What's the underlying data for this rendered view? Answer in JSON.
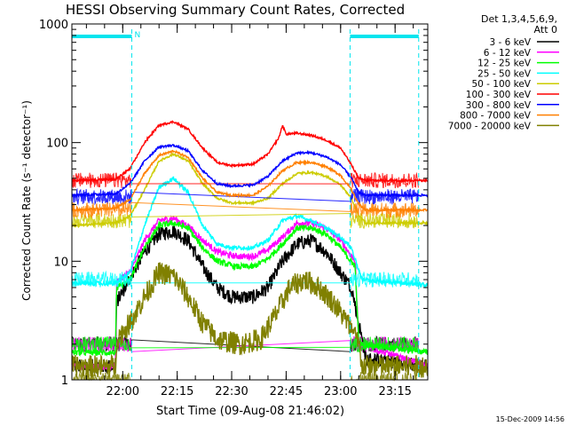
{
  "chart_data": {
    "type": "line",
    "title": "HESSI Observing Summary Count Rates, Corrected",
    "xlabel": "Start Time (09-Aug-08 21:46:02)",
    "ylabel": "Corrected Count Rate (s⁻¹ detector⁻¹)",
    "yscale": "log",
    "ylim": [
      1,
      1000
    ],
    "xlim_minutes": [
      0,
      98
    ],
    "y_ticks": [
      {
        "value": 1,
        "label": "1"
      },
      {
        "value": 10,
        "label": "10"
      },
      {
        "value": 100,
        "label": "100"
      },
      {
        "value": 1000,
        "label": "1000"
      }
    ],
    "x_ticks": [
      {
        "minute": 14,
        "label": "22:00"
      },
      {
        "minute": 29,
        "label": "22:15"
      },
      {
        "minute": 44,
        "label": "22:30"
      },
      {
        "minute": 59,
        "label": "22:45"
      },
      {
        "minute": 74,
        "label": "23:00"
      },
      {
        "minute": 89,
        "label": "23:15"
      }
    ],
    "legend_header": [
      "Det 1,3,4,5,6,9,",
      "Att 0"
    ],
    "timestamp": "15-Dec-2009 14:56",
    "night_marker": "N",
    "night_intervals": [
      [
        0,
        16.5
      ],
      [
        76.6,
        95.5
      ]
    ],
    "saa_lines_minutes": [
      16.5,
      76.6,
      95.5
    ],
    "series": [
      {
        "name": "3 - 6 keV",
        "color": "#000000",
        "gap": 2.0,
        "noise": 0.14,
        "points": [
          [
            0,
            1.3
          ],
          [
            12,
            1.3
          ],
          [
            12.3,
            4.5
          ],
          [
            20,
            12
          ],
          [
            24,
            17
          ],
          [
            28,
            18
          ],
          [
            32,
            15
          ],
          [
            36,
            9
          ],
          [
            40,
            6
          ],
          [
            44,
            5
          ],
          [
            50,
            5
          ],
          [
            54,
            6
          ],
          [
            58,
            10
          ],
          [
            62,
            14
          ],
          [
            66,
            15
          ],
          [
            70,
            12
          ],
          [
            74,
            8
          ],
          [
            77,
            6
          ],
          [
            79,
            3
          ],
          [
            81,
            1.5
          ],
          [
            98,
            1.3
          ]
        ]
      },
      {
        "name": "6 - 12 keV",
        "color": "#ff00ff",
        "gap": 2.0,
        "noise": 0.06,
        "points": [
          [
            0,
            1.3
          ],
          [
            12,
            1.3
          ],
          [
            12.3,
            6.8
          ],
          [
            16,
            8
          ],
          [
            20,
            15
          ],
          [
            24,
            22
          ],
          [
            28,
            23
          ],
          [
            32,
            20
          ],
          [
            36,
            15
          ],
          [
            40,
            12
          ],
          [
            45,
            11
          ],
          [
            50,
            11
          ],
          [
            54,
            12.5
          ],
          [
            58,
            16
          ],
          [
            62,
            21
          ],
          [
            66,
            21
          ],
          [
            70,
            19
          ],
          [
            74,
            15
          ],
          [
            78,
            10
          ],
          [
            79,
            2
          ],
          [
            98,
            1.3
          ]
        ]
      },
      {
        "name": "12 - 25 keV",
        "color": "#00ff00",
        "gap": 2.0,
        "noise": 0.06,
        "points": [
          [
            0,
            1.7
          ],
          [
            12,
            1.7
          ],
          [
            12.3,
            5.8
          ],
          [
            16,
            7
          ],
          [
            20,
            13
          ],
          [
            24,
            20
          ],
          [
            28,
            21
          ],
          [
            32,
            19
          ],
          [
            36,
            13
          ],
          [
            40,
            10
          ],
          [
            45,
            9
          ],
          [
            50,
            9
          ],
          [
            54,
            10.5
          ],
          [
            58,
            14
          ],
          [
            62,
            19
          ],
          [
            66,
            19
          ],
          [
            70,
            17
          ],
          [
            74,
            13
          ],
          [
            78,
            9
          ],
          [
            79,
            2
          ],
          [
            98,
            1.7
          ]
        ]
      },
      {
        "name": "25 - 50 keV",
        "color": "#00ffff",
        "gap": 7.0,
        "noise": 0.04,
        "points": [
          [
            0,
            6.5
          ],
          [
            12,
            6.5
          ],
          [
            16,
            8
          ],
          [
            20,
            20
          ],
          [
            24,
            42
          ],
          [
            28,
            50
          ],
          [
            32,
            38
          ],
          [
            36,
            20
          ],
          [
            40,
            14
          ],
          [
            44,
            13
          ],
          [
            50,
            13
          ],
          [
            54,
            15
          ],
          [
            58,
            22
          ],
          [
            62,
            24
          ],
          [
            66,
            22
          ],
          [
            70,
            19
          ],
          [
            74,
            16
          ],
          [
            77,
            13
          ],
          [
            78.6,
            9
          ],
          [
            80,
            7
          ],
          [
            98,
            6.3
          ]
        ]
      },
      {
        "name": "50 - 100 keV",
        "color": "#cccc00",
        "gap": 22.0,
        "noise": 0.02,
        "points": [
          [
            0,
            20
          ],
          [
            12,
            21
          ],
          [
            16,
            24
          ],
          [
            20,
            40
          ],
          [
            24,
            70
          ],
          [
            28,
            80
          ],
          [
            32,
            70
          ],
          [
            36,
            45
          ],
          [
            40,
            34
          ],
          [
            44,
            31
          ],
          [
            50,
            31
          ],
          [
            54,
            34
          ],
          [
            58,
            45
          ],
          [
            62,
            55
          ],
          [
            66,
            56
          ],
          [
            70,
            52
          ],
          [
            74,
            44
          ],
          [
            77,
            34
          ],
          [
            79,
            24
          ],
          [
            81,
            21
          ],
          [
            98,
            21
          ]
        ]
      },
      {
        "name": "100 - 300 keV",
        "color": "#ff0000",
        "gap": 48.0,
        "noise": 0.02,
        "points": [
          [
            0,
            48
          ],
          [
            12,
            49
          ],
          [
            16,
            60
          ],
          [
            20,
            100
          ],
          [
            24,
            140
          ],
          [
            28,
            150
          ],
          [
            32,
            130
          ],
          [
            36,
            90
          ],
          [
            40,
            68
          ],
          [
            44,
            64
          ],
          [
            50,
            66
          ],
          [
            54,
            80
          ],
          [
            57,
            110
          ],
          [
            58,
            140
          ],
          [
            59,
            118
          ],
          [
            62,
            120
          ],
          [
            66,
            115
          ],
          [
            70,
            105
          ],
          [
            74,
            90
          ],
          [
            77,
            65
          ],
          [
            79,
            50
          ],
          [
            81,
            48
          ],
          [
            98,
            48
          ]
        ]
      },
      {
        "name": "300 - 800 keV",
        "color": "#0000ff",
        "gap": 35.0,
        "noise": 0.02,
        "points": [
          [
            0,
            36
          ],
          [
            12,
            37
          ],
          [
            16,
            45
          ],
          [
            20,
            70
          ],
          [
            24,
            92
          ],
          [
            28,
            95
          ],
          [
            32,
            85
          ],
          [
            36,
            58
          ],
          [
            40,
            45
          ],
          [
            44,
            43
          ],
          [
            50,
            44
          ],
          [
            54,
            52
          ],
          [
            58,
            70
          ],
          [
            62,
            82
          ],
          [
            66,
            82
          ],
          [
            70,
            76
          ],
          [
            74,
            65
          ],
          [
            77,
            50
          ],
          [
            79,
            38
          ],
          [
            81,
            36
          ],
          [
            98,
            36
          ]
        ]
      },
      {
        "name": "800 - 7000 keV",
        "color": "#ff8000",
        "gap": 27.0,
        "noise": 0.02,
        "points": [
          [
            0,
            27
          ],
          [
            12,
            28
          ],
          [
            16,
            33
          ],
          [
            20,
            55
          ],
          [
            24,
            78
          ],
          [
            28,
            85
          ],
          [
            32,
            75
          ],
          [
            36,
            50
          ],
          [
            40,
            38
          ],
          [
            44,
            36
          ],
          [
            50,
            36
          ],
          [
            54,
            43
          ],
          [
            58,
            58
          ],
          [
            62,
            68
          ],
          [
            66,
            68
          ],
          [
            70,
            63
          ],
          [
            74,
            53
          ],
          [
            77,
            40
          ],
          [
            79,
            30
          ],
          [
            81,
            27
          ],
          [
            98,
            27
          ]
        ]
      },
      {
        "name": "7000 - 20000 keV",
        "color": "#808000",
        "gap": 1.0,
        "noise": 0.22,
        "points": [
          [
            0,
            1.3
          ],
          [
            12,
            1.3
          ],
          [
            12.3,
            2.2
          ],
          [
            16,
            3
          ],
          [
            20,
            5
          ],
          [
            24,
            8
          ],
          [
            28,
            7.5
          ],
          [
            32,
            5
          ],
          [
            36,
            3
          ],
          [
            40,
            2.2
          ],
          [
            46,
            2
          ],
          [
            52,
            2.2
          ],
          [
            56,
            3.5
          ],
          [
            60,
            6
          ],
          [
            64,
            7
          ],
          [
            68,
            6
          ],
          [
            72,
            4.5
          ],
          [
            76,
            3
          ],
          [
            79,
            2
          ],
          [
            80,
            1.3
          ],
          [
            98,
            1.3
          ]
        ]
      }
    ]
  }
}
